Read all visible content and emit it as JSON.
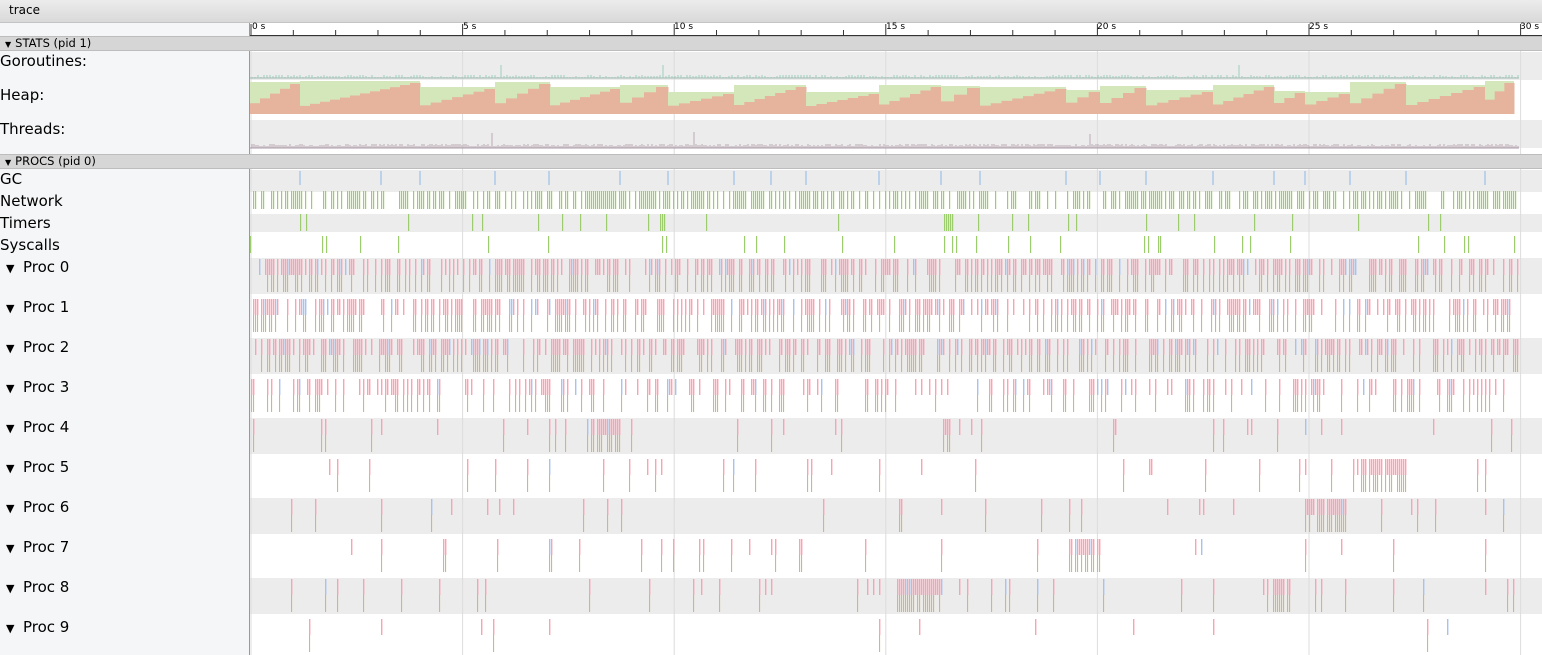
{
  "window": {
    "tab_title": "trace"
  },
  "groups": {
    "stats": "STATS (pid 1)",
    "procs": "PROCS (pid 0)",
    "toggle_glyph": "▼"
  },
  "stats_rows": [
    "Goroutines:",
    "Heap:",
    "Threads:"
  ],
  "proc_rows": [
    "GC",
    "Network",
    "Timers",
    "Syscalls"
  ],
  "procs": [
    "Proc 0",
    "Proc 1",
    "Proc 2",
    "Proc 3",
    "Proc 4",
    "Proc 5",
    "Proc 6",
    "Proc 7",
    "Proc 8",
    "Proc 9"
  ],
  "timeline": {
    "tick_labels": [
      "0 s",
      "5 s",
      "10 s",
      "15 s",
      "20 s",
      "25 s",
      "30 s"
    ],
    "max_seconds": 30
  },
  "colors": {
    "running": "#f7a3b4",
    "syscall": "#d3b77a",
    "gc_worker": "#a8c1f0",
    "network": "#9ccc6e",
    "heap_alloc": "#e6b49d",
    "heap_next_gc": "#d3e7bb",
    "goroutine_line": "#9dd0c0",
    "thread_line": "#bcaab6",
    "gc_marker": "#8cb8e8"
  }
}
